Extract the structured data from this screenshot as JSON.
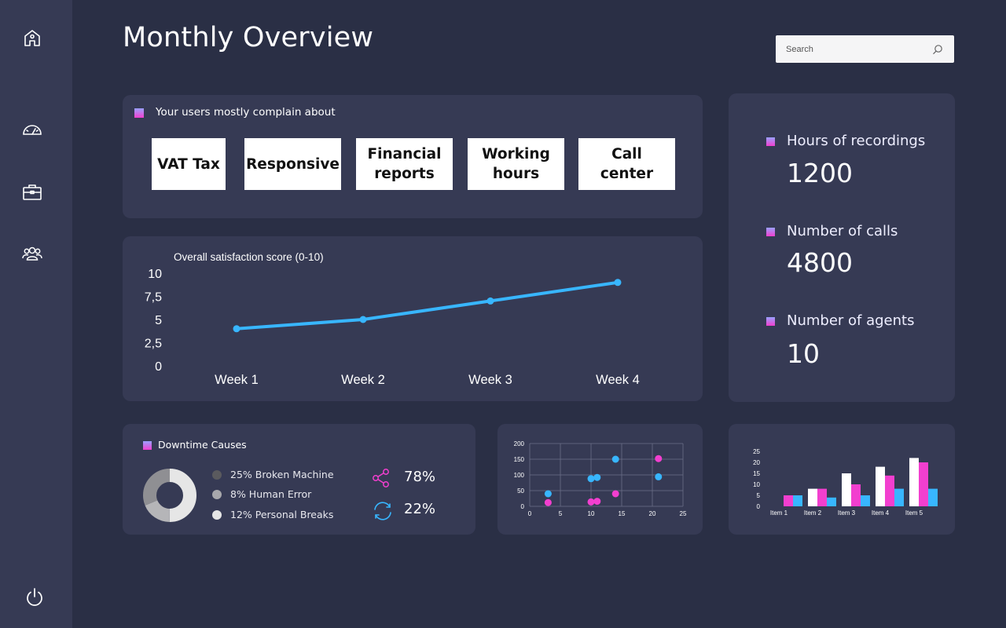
{
  "page": {
    "title": "Monthly Overview"
  },
  "search": {
    "placeholder": "Search"
  },
  "sidebar": {
    "items": [
      {
        "icon": "home-icon"
      },
      {
        "icon": "speedometer-icon"
      },
      {
        "icon": "briefcase-icon"
      },
      {
        "icon": "users-icon"
      }
    ],
    "footer_icon": "power-icon"
  },
  "complaints": {
    "title": "Your users mostly complain about",
    "tags": [
      {
        "line1": "VAT Tax",
        "line2": ""
      },
      {
        "line1": "Responsive",
        "line2": ""
      },
      {
        "line1": "Financial",
        "line2": "reports"
      },
      {
        "line1": "Working",
        "line2": "hours"
      },
      {
        "line1": "Call center",
        "line2": ""
      }
    ]
  },
  "stats": [
    {
      "label": "Hours of recordings",
      "value": "1200"
    },
    {
      "label": "Number of calls",
      "value": "4800"
    },
    {
      "label": "Number of agents",
      "value": "10"
    }
  ],
  "downtime": {
    "title": "Downtime Causes",
    "legend": [
      {
        "label": "25% Broken Machine",
        "color": "#5a5a5e"
      },
      {
        "label": "8% Human Error",
        "color": "#a8a8ac"
      },
      {
        "label": "12% Personal Breaks",
        "color": "#e6e6e6"
      }
    ],
    "metrics": [
      {
        "icon": "share-icon",
        "value": "78%"
      },
      {
        "icon": "refresh-icon",
        "value": "22%"
      }
    ]
  },
  "colors": {
    "accent_blue": "#38b6ff",
    "accent_pink": "#f23fcf",
    "card_bg": "#363a54",
    "page_bg": "#2a2f45"
  },
  "chart_data": [
    {
      "type": "line",
      "title": "Overall satisfaction score (0-10)",
      "categories": [
        "Week 1",
        "Week 2",
        "Week 3",
        "Week 4"
      ],
      "values": [
        4,
        5,
        7,
        9
      ],
      "y_ticks": [
        "0",
        "2,5",
        "5",
        "7,5",
        "10"
      ],
      "ylim": [
        0,
        10
      ],
      "color": "#38b6ff"
    },
    {
      "type": "scatter",
      "xlim": [
        0,
        25
      ],
      "ylim": [
        0,
        200
      ],
      "x_ticks": [
        "0",
        "5",
        "10",
        "15",
        "20",
        "25"
      ],
      "y_ticks": [
        "0",
        "50",
        "100",
        "150",
        "200"
      ],
      "grid": true,
      "series": [
        {
          "color": "#38b6ff",
          "points": [
            [
              3,
              40
            ],
            [
              10,
              88
            ],
            [
              11,
              92
            ],
            [
              14,
              150
            ],
            [
              21,
              94
            ]
          ]
        },
        {
          "color": "#f23fcf",
          "points": [
            [
              3,
              12
            ],
            [
              10,
              14
            ],
            [
              11,
              16
            ],
            [
              14,
              40
            ],
            [
              21,
              152
            ]
          ]
        }
      ]
    },
    {
      "type": "bar",
      "categories": [
        "Item 1",
        "Item 2",
        "Item 3",
        "Item 4",
        "Item 5"
      ],
      "ylim": [
        0,
        25
      ],
      "y_ticks": [
        "0",
        "5",
        "10",
        "15",
        "20",
        "25"
      ],
      "series": [
        {
          "color": "#ffffff",
          "values": [
            0,
            8,
            15,
            18,
            22
          ]
        },
        {
          "color": "#f23fcf",
          "values": [
            5,
            8,
            10,
            14,
            20
          ]
        },
        {
          "color": "#38b6ff",
          "values": [
            5,
            4,
            5,
            8,
            8
          ]
        }
      ]
    }
  ]
}
